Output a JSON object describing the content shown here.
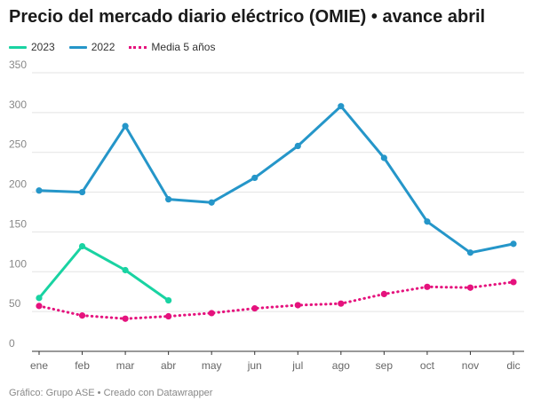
{
  "chart_data": {
    "type": "line",
    "title": "Precio del mercado diario eléctrico (OMIE) • avance abril",
    "categories": [
      "ene",
      "feb",
      "mar",
      "abr",
      "may",
      "jun",
      "jul",
      "ago",
      "sep",
      "oct",
      "nov",
      "dic"
    ],
    "ylim": [
      0,
      350
    ],
    "yticks": [
      0,
      50,
      100,
      150,
      200,
      250,
      300,
      350
    ],
    "grid": true,
    "legend_position": "top-left",
    "series": [
      {
        "name": "2023",
        "color": "#19d3a2",
        "style": "solid",
        "values": [
          67,
          132,
          102,
          64,
          null,
          null,
          null,
          null,
          null,
          null,
          null,
          null
        ]
      },
      {
        "name": "2022",
        "color": "#2596c9",
        "style": "solid",
        "values": [
          202,
          200,
          283,
          191,
          187,
          218,
          258,
          308,
          243,
          163,
          124,
          135
        ]
      },
      {
        "name": "Media 5 años",
        "color": "#e5127d",
        "style": "dotted",
        "values": [
          57,
          45,
          41,
          44,
          48,
          54,
          58,
          60,
          72,
          81,
          80,
          87
        ]
      }
    ]
  },
  "footer": "Gráfico: Grupo ASE • Creado con Datawrapper"
}
